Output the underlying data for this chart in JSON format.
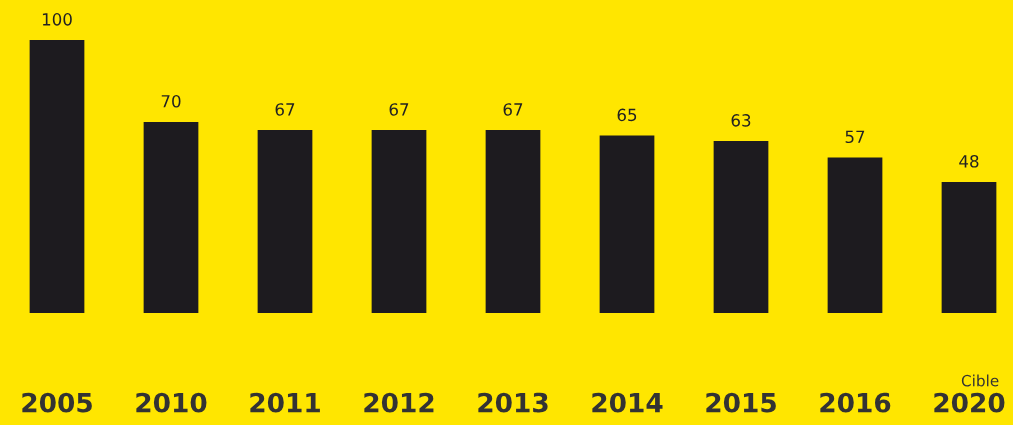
{
  "chart_data": {
    "type": "bar",
    "categories": [
      "2005",
      "2010",
      "2011",
      "2012",
      "2013",
      "2014",
      "2015",
      "2016",
      "2020"
    ],
    "values": [
      100,
      70,
      67,
      67,
      67,
      65,
      63,
      57,
      48
    ],
    "color": "#1d1b1f",
    "data_labels": true,
    "grid": false,
    "legend": false,
    "annotations": [
      "Cible"
    ]
  }
}
